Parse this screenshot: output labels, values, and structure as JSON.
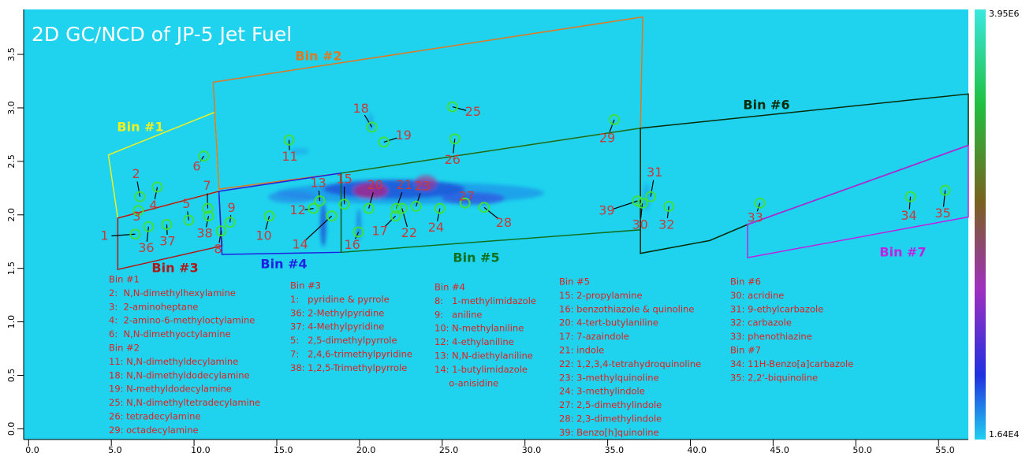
{
  "chart_data": {
    "type": "gc2d",
    "title": "2D GC/NCD of JP-5 Jet Fuel",
    "xlim": [
      -0.3,
      56.8
    ],
    "ylim": [
      -0.1,
      3.92
    ],
    "xticks": [
      {
        "value": 0,
        "label": "0.0"
      },
      {
        "value": 5,
        "label": "5.0"
      },
      {
        "value": 10,
        "label": "10.0"
      },
      {
        "value": 15,
        "label": "15.0"
      },
      {
        "value": 20,
        "label": "20.0"
      },
      {
        "value": 25,
        "label": "25.0"
      },
      {
        "value": 30,
        "label": "30.0"
      },
      {
        "value": 35,
        "label": "35.0"
      },
      {
        "value": 40,
        "label": "40.0"
      },
      {
        "value": 45,
        "label": "45.0"
      },
      {
        "value": 50,
        "label": "50.0"
      },
      {
        "value": 55,
        "label": "55.0"
      }
    ],
    "yticks": [
      {
        "value": 0,
        "label": "0.0"
      },
      {
        "value": 0.5,
        "label": "0.5"
      },
      {
        "value": 1,
        "label": "1.0"
      },
      {
        "value": 1.5,
        "label": "1.5"
      },
      {
        "value": 2,
        "label": "2.0"
      },
      {
        "value": 2.5,
        "label": "2.5"
      },
      {
        "value": 3,
        "label": "3.0"
      },
      {
        "value": 3.5,
        "label": "3.5"
      }
    ],
    "colorbar": {
      "min": {
        "value": 16400,
        "label": "1.64E4"
      },
      "max": {
        "value": 3950000,
        "label": "3.95E6"
      }
    },
    "bins": [
      {
        "name": "Bin #1",
        "color": "#f0f020",
        "x": [
          4.82,
          11.26,
          11.5,
          5.39
        ],
        "y": [
          2.56,
          2.96,
          2.22,
          1.97
        ]
      },
      {
        "name": "Bin #2",
        "color": "#e07820",
        "x": [
          11.16,
          37.12,
          36.98,
          18.89,
          11.5
        ],
        "y": [
          3.24,
          3.85,
          2.81,
          2.39,
          2.24
        ]
      },
      {
        "name": "Bin #3",
        "color": "#b01818",
        "x": [
          5.39,
          11.5,
          11.69,
          5.39
        ],
        "y": [
          1.97,
          2.22,
          1.71,
          1.49
        ]
      },
      {
        "name": "Bin #4",
        "color": "#2020e0",
        "x": [
          11.5,
          18.89,
          18.89,
          11.69
        ],
        "y": [
          2.22,
          2.39,
          1.65,
          1.63
        ]
      },
      {
        "name": "Bin #5",
        "color": "#107020",
        "x": [
          18.89,
          36.98,
          36.98,
          18.89
        ],
        "y": [
          2.39,
          2.81,
          1.86,
          1.65
        ]
      },
      {
        "name": "Bin #6",
        "color": "#0a2a0a",
        "x": [
          36.98,
          56.8,
          56.8,
          43.46,
          41.17,
          36.98
        ],
        "y": [
          2.81,
          3.13,
          2.65,
          1.91,
          1.76,
          1.64
        ]
      },
      {
        "name": "Bin #7",
        "color": "#c020e0",
        "x": [
          43.46,
          56.8,
          56.8,
          43.46
        ],
        "y": [
          1.91,
          2.65,
          1.98,
          1.6
        ]
      }
    ],
    "peaks": [
      {
        "label": "1",
        "x": 6.44,
        "y": 1.82
      },
      {
        "label": "2",
        "x": 6.73,
        "y": 2.17
      },
      {
        "label": "3",
        "x": 6.63,
        "y": 2.04
      },
      {
        "label": "4",
        "x": 7.78,
        "y": 2.26
      },
      {
        "label": "5",
        "x": 9.68,
        "y": 1.95
      },
      {
        "label": "6",
        "x": 10.59,
        "y": 2.55
      },
      {
        "label": "7",
        "x": 10.83,
        "y": 2.06
      },
      {
        "label": "8",
        "x": 11.64,
        "y": 1.85
      },
      {
        "label": "9",
        "x": 12.17,
        "y": 1.93
      },
      {
        "label": "10",
        "x": 14.55,
        "y": 1.99
      },
      {
        "label": "11",
        "x": 15.74,
        "y": 2.7
      },
      {
        "label": "12",
        "x": 17.22,
        "y": 2.06
      },
      {
        "label": "13",
        "x": 17.6,
        "y": 2.13
      },
      {
        "label": "14",
        "x": 18.32,
        "y": 1.99
      },
      {
        "label": "15",
        "x": 19.08,
        "y": 2.1
      },
      {
        "label": "16",
        "x": 19.94,
        "y": 1.84
      },
      {
        "label": "17",
        "x": 22.18,
        "y": 1.99
      },
      {
        "label": "18",
        "x": 20.75,
        "y": 2.82
      },
      {
        "label": "19",
        "x": 21.47,
        "y": 2.68
      },
      {
        "label": "20",
        "x": 20.56,
        "y": 2.06
      },
      {
        "label": "21",
        "x": 22.23,
        "y": 2.06
      },
      {
        "label": "22",
        "x": 22.57,
        "y": 2.06
      },
      {
        "label": "23",
        "x": 23.42,
        "y": 2.08
      },
      {
        "label": "24",
        "x": 24.86,
        "y": 2.06
      },
      {
        "label": "25",
        "x": 25.62,
        "y": 3.01
      },
      {
        "label": "26",
        "x": 25.76,
        "y": 2.71
      },
      {
        "label": "27",
        "x": 26.38,
        "y": 2.11
      },
      {
        "label": "28",
        "x": 27.53,
        "y": 2.07
      },
      {
        "label": "29",
        "x": 35.4,
        "y": 2.89
      },
      {
        "label": "30",
        "x": 37.1,
        "y": 2.11
      },
      {
        "label": "31",
        "x": 37.6,
        "y": 2.17
      },
      {
        "label": "32",
        "x": 38.7,
        "y": 2.08
      },
      {
        "label": "33",
        "x": 44.2,
        "y": 2.11
      },
      {
        "label": "34",
        "x": 53.3,
        "y": 2.17
      },
      {
        "label": "35",
        "x": 55.4,
        "y": 2.23
      },
      {
        "label": "36",
        "x": 7.25,
        "y": 1.89
      },
      {
        "label": "37",
        "x": 8.35,
        "y": 1.91
      },
      {
        "label": "38",
        "x": 10.88,
        "y": 1.99
      },
      {
        "label": "39",
        "x": 36.8,
        "y": 2.13
      }
    ],
    "legend_columns": [
      [
        "Bin #1",
        "2:  N,N-dimethylhexylamine",
        "3:  2-aminoheptane",
        "4:  2-amino-6-methyloctylamine",
        "6:  N,N-dimethyoctylamine",
        "Bin #2",
        "11: N,N-dimethyldecylamine",
        "18: N,N-dimethyldodecylamine",
        "19: N-methyldodecylamine",
        "25: N,N-dimethyltetradecylamine",
        "26: tetradecylamine",
        "29: octadecylamine"
      ],
      [
        "Bin #3",
        "1:   pyridine & pyrrole",
        "36: 2-Methylpyridine",
        "37: 4-Methylpyridine",
        "5:   2,5-dimethylpyrrole",
        "7:   2,4,6-trimethylpyridine",
        "38: 1,2,5-Trimethylpyrrole"
      ],
      [
        "Bin #4",
        "8:   1-methylimidazole",
        "9:   aniline",
        "10: N-methylaniline",
        "12: 4-ethylaniline",
        "13: N,N-diethylaniline",
        "14: 1-butylimidazole",
        "     o-anisidine"
      ],
      [
        "Bin #5",
        "15: 2-propylamine",
        "16: benzothiazole & quinoline",
        "20: 4-tert-butylaniline",
        "17: 7-azaindole",
        "21: indole",
        "22: 1,2,3,4-tetrahydroquinoline",
        "23: 3-methylquinoline",
        "24: 3-methylindole",
        "27: 2,5-dimethylindole",
        "28: 2,3-dimethylindole",
        "39: Benzo[h]quinoline"
      ],
      [
        "Bin #6",
        "30: acridine",
        "31: 9-ethylcarbazole",
        "32: carbazole",
        "33: phenothiazine",
        "Bin #7",
        "34: 11H-Benzo[a]carbazole",
        "35: 2,2'-biquinoline"
      ]
    ]
  }
}
